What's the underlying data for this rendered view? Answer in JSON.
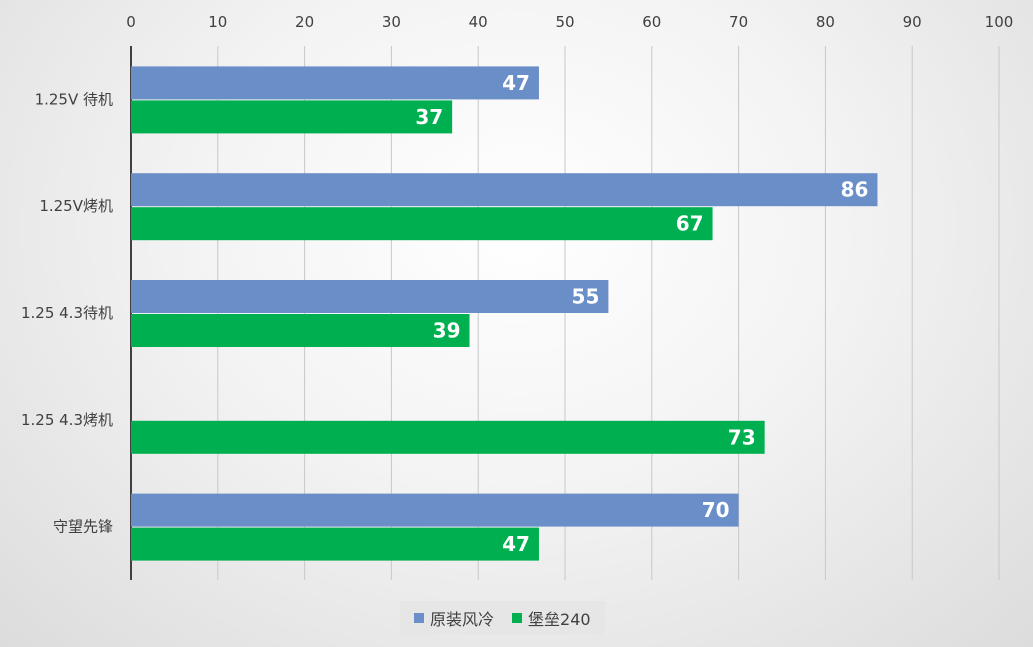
{
  "chart_data": {
    "type": "bar",
    "orientation": "horizontal",
    "categories": [
      "1.25V 待机",
      "1.25V烤机",
      "1.25 4.3待机",
      "1.25 4.3烤机",
      "守望先锋"
    ],
    "series": [
      {
        "name": "原装风冷",
        "color": "#6a8fc8",
        "values": [
          47,
          86,
          55,
          null,
          70
        ]
      },
      {
        "name": "堡垒240",
        "color": "#00b050",
        "values": [
          37,
          67,
          39,
          73,
          47
        ]
      }
    ],
    "xlim": [
      0,
      100
    ],
    "ticks": [
      0,
      10,
      20,
      30,
      40,
      50,
      60,
      70,
      80,
      90,
      100
    ],
    "xaxis_position": "top",
    "grid": true,
    "legend": "bottom-center"
  }
}
